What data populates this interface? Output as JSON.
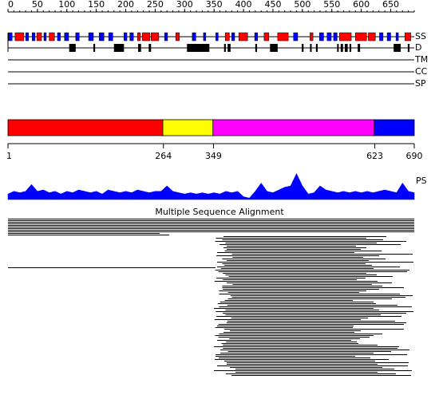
{
  "length": 690,
  "ruler": {
    "ticks": [
      0,
      50,
      100,
      150,
      200,
      250,
      300,
      350,
      400,
      450,
      500,
      550,
      600,
      650
    ]
  },
  "tracks": {
    "ss": {
      "label": "SS",
      "helix_color": "#ff0000",
      "strand_color": "#0000ff",
      "helix": [
        [
          12,
          27
        ],
        [
          49,
          57
        ],
        [
          70,
          79
        ],
        [
          220,
          225
        ],
        [
          228,
          241
        ],
        [
          243,
          256
        ],
        [
          285,
          291
        ],
        [
          369,
          376
        ],
        [
          392,
          407
        ],
        [
          435,
          443
        ],
        [
          458,
          476
        ],
        [
          513,
          518
        ],
        [
          563,
          583
        ],
        [
          590,
          609
        ],
        [
          612,
          624
        ],
        [
          674,
          684
        ]
      ],
      "strand": [
        [
          1,
          7
        ],
        [
          30,
          35
        ],
        [
          41,
          46
        ],
        [
          61,
          65
        ],
        [
          84,
          89
        ],
        [
          96,
          103
        ],
        [
          115,
          121
        ],
        [
          137,
          145
        ],
        [
          155,
          163
        ],
        [
          171,
          178
        ],
        [
          197,
          202
        ],
        [
          207,
          213
        ],
        [
          266,
          271
        ],
        [
          313,
          319
        ],
        [
          332,
          336
        ],
        [
          353,
          357
        ],
        [
          380,
          385
        ],
        [
          419,
          424
        ],
        [
          485,
          492
        ],
        [
          529,
          536
        ],
        [
          542,
          549
        ],
        [
          553,
          559
        ],
        [
          631,
          637
        ],
        [
          644,
          650
        ],
        [
          659,
          663
        ]
      ]
    },
    "d": {
      "label": "D",
      "color": "#000000",
      "segments": [
        [
          104,
          115
        ],
        [
          145,
          148
        ],
        [
          180,
          197
        ],
        [
          221,
          226
        ],
        [
          239,
          243
        ],
        [
          304,
          342
        ],
        [
          367,
          370
        ],
        [
          373,
          378
        ],
        [
          420,
          423
        ],
        [
          445,
          458
        ],
        [
          499,
          502
        ],
        [
          513,
          515
        ],
        [
          523,
          526
        ],
        [
          559,
          561
        ],
        [
          565,
          569
        ],
        [
          572,
          577
        ],
        [
          580,
          583
        ],
        [
          594,
          598
        ],
        [
          655,
          667
        ],
        [
          679,
          682
        ]
      ]
    },
    "tm": {
      "label": "TM"
    },
    "cc": {
      "label": "CC"
    },
    "sp": {
      "label": "SP"
    }
  },
  "domains": [
    {
      "start": 1,
      "end": 264,
      "color": "#ff0000"
    },
    {
      "start": 264,
      "end": 349,
      "color": "#ffff00"
    },
    {
      "start": 349,
      "end": 623,
      "color": "#ff00ff"
    },
    {
      "start": 623,
      "end": 690,
      "color": "#0000ff"
    }
  ],
  "ps": {
    "label": "PS",
    "color": "#0000ff",
    "ylim": [
      0,
      1
    ],
    "positions": [
      0,
      10,
      20,
      30,
      40,
      50,
      60,
      70,
      80,
      90,
      100,
      110,
      120,
      130,
      140,
      150,
      160,
      170,
      180,
      190,
      200,
      210,
      220,
      230,
      240,
      250,
      260,
      270,
      280,
      290,
      300,
      310,
      320,
      330,
      340,
      350,
      360,
      370,
      380,
      390,
      400,
      410,
      420,
      430,
      440,
      450,
      460,
      470,
      480,
      490,
      500,
      510,
      520,
      530,
      540,
      550,
      560,
      570,
      580,
      590,
      600,
      610,
      620,
      630,
      640,
      650,
      660,
      670,
      680,
      690
    ],
    "values": [
      0.2,
      0.3,
      0.25,
      0.3,
      0.55,
      0.3,
      0.35,
      0.25,
      0.3,
      0.2,
      0.3,
      0.25,
      0.35,
      0.3,
      0.25,
      0.3,
      0.2,
      0.35,
      0.3,
      0.25,
      0.3,
      0.25,
      0.35,
      0.3,
      0.25,
      0.3,
      0.3,
      0.5,
      0.3,
      0.25,
      0.2,
      0.25,
      0.2,
      0.25,
      0.2,
      0.25,
      0.2,
      0.3,
      0.25,
      0.3,
      0.1,
      0.05,
      0.3,
      0.6,
      0.3,
      0.25,
      0.35,
      0.45,
      0.5,
      0.95,
      0.5,
      0.2,
      0.25,
      0.5,
      0.35,
      0.3,
      0.25,
      0.3,
      0.25,
      0.3,
      0.25,
      0.3,
      0.25,
      0.3,
      0.35,
      0.3,
      0.25,
      0.6,
      0.3,
      0.25
    ]
  },
  "msa": {
    "title": "Multiple Sequence Alignment"
  }
}
